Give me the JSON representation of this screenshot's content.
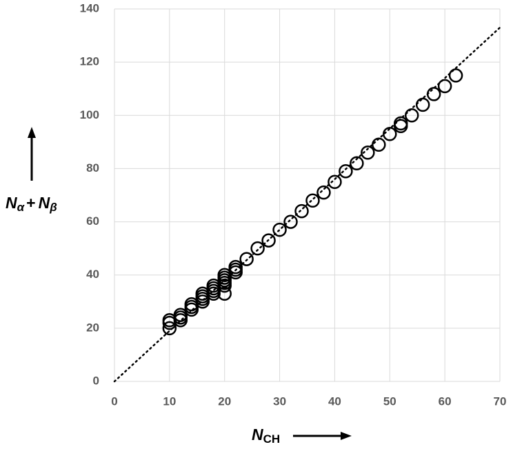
{
  "chart_data": {
    "type": "scatter",
    "x_label": {
      "text": "N",
      "subscript": "CH"
    },
    "y_label": [
      {
        "text": "N",
        "subscript": "α"
      },
      {
        "text": "+"
      },
      {
        "text": "N",
        "subscript": "β"
      }
    ],
    "xlim": [
      0,
      70
    ],
    "xticks": [
      0,
      10,
      20,
      30,
      40,
      50,
      60,
      70
    ],
    "ylim": [
      0,
      140
    ],
    "yticks": [
      0,
      20,
      40,
      60,
      80,
      100,
      120,
      140
    ],
    "grid": true,
    "series": [
      {
        "color": "#000000",
        "x": [
          10,
          10,
          10,
          12,
          12,
          12,
          14,
          14,
          14,
          16,
          16,
          16,
          16,
          18,
          18,
          18,
          18,
          20,
          20,
          20,
          20,
          20,
          20,
          22,
          22,
          22,
          24,
          26,
          28,
          30,
          32,
          34,
          36,
          38,
          40,
          42,
          44,
          46,
          48,
          50,
          52,
          52,
          54,
          56,
          58,
          60,
          62
        ],
        "values": [
          20,
          22,
          23,
          23,
          24,
          25,
          27,
          28,
          29,
          30,
          31,
          32,
          33,
          33,
          34,
          35,
          36,
          33,
          36,
          37,
          38,
          39,
          40,
          41,
          42,
          43,
          46,
          50,
          53,
          57,
          60,
          64,
          68,
          71,
          75,
          79,
          82,
          86,
          89,
          93,
          96,
          97,
          100,
          104,
          108,
          111,
          115
        ]
      }
    ],
    "fit_line": {
      "color": "#000000",
      "x": [
        0,
        70
      ],
      "y": [
        0,
        133
      ]
    }
  }
}
